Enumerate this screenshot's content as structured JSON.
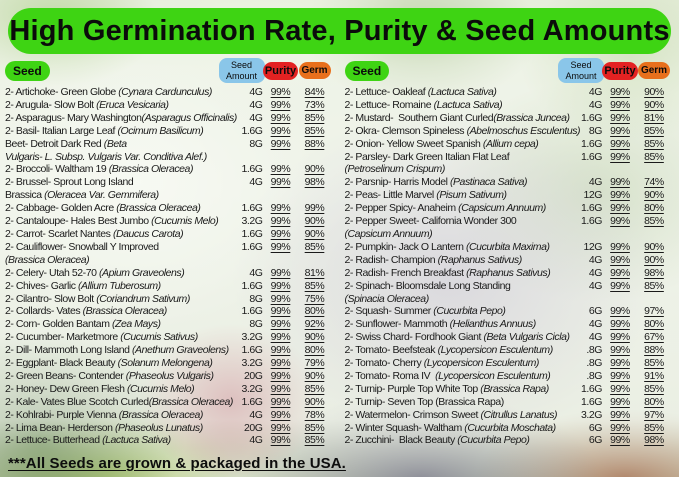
{
  "title": "High Germination Rate, Purity & Seed Amounts",
  "column_headers": {
    "seed": "Seed",
    "seed_amount": "Seed Amount",
    "purity": "Purity",
    "germ": "Germ"
  },
  "colors": {
    "header_green": "#3ed413",
    "seed_badge_green": "#3ed413",
    "seed_amount_blue": "#8ac6e9",
    "purity_red": "#e32222",
    "germ_orange": "#e8701c"
  },
  "footer": "***All Seeds are grown & packaged in the USA.",
  "columns": [
    {
      "rows": [
        {
          "name": "2- Artichoke- Green Globe ",
          "latin": "(Cynara Cardunculus)",
          "amount": "4G",
          "purity": "99%",
          "germ": "84%"
        },
        {
          "name": "2- Arugula- Slow Bolt ",
          "latin": "(Eruca Vesicaria)",
          "amount": "4G",
          "purity": "99%",
          "germ": "73%"
        },
        {
          "name": "2- Asparagus- Mary Washington",
          "latin": "(Asparagus Officinalis)",
          "amount": "4G",
          "purity": "99%",
          "germ": "85%"
        },
        {
          "name": "2- Basil- Italian Large Leaf ",
          "latin": "(Ocimum Basilicum)",
          "amount": "1.6G",
          "purity": "99%",
          "germ": "85%"
        },
        {
          "name": "Beet- Detroit Dark Red ",
          "latin": "(Beta\nVulgaris- L. Subsp. Vulgaris Var. Conditiva Alef.)",
          "amount": "8G",
          "purity": "99%",
          "germ": "88%"
        },
        {
          "name": "2- Broccoli- Waltham 19 ",
          "latin": "(Brassica Oleracea)",
          "amount": "1.6G",
          "purity": "99%",
          "germ": "90%"
        },
        {
          "name": "2- Brussel- Sprout Long Island\nBrassica ",
          "latin": "(Oleracea Var. Gemmifera)",
          "amount": "4G",
          "purity": "99%",
          "germ": "98%"
        },
        {
          "name": "2- Cabbage- Golden Acre ",
          "latin": "(Brassica Oleracea)",
          "amount": "1.6G",
          "purity": "99%",
          "germ": "99%"
        },
        {
          "name": "2- Cantaloupe- Hales Best Jumbo ",
          "latin": "(Cucumis Melo)",
          "amount": "3.2G",
          "purity": "99%",
          "germ": "90%"
        },
        {
          "name": "2- Carrot- Scarlet Nantes ",
          "latin": "(Daucus Carota)",
          "amount": "1.6G",
          "purity": "99%",
          "germ": "90%"
        },
        {
          "name": "2- Cauliflower- Snowball Y Improved\n",
          "latin": "(Brassica Oleracea)",
          "amount": "1.6G",
          "purity": "99%",
          "germ": "85%"
        },
        {
          "name": "2- Celery- Utah 52-70 ",
          "latin": "(Apium Graveolens)",
          "amount": "4G",
          "purity": "99%",
          "germ": "81%"
        },
        {
          "name": "2- Chives- Garlic ",
          "latin": "(Allium Tuberosum)",
          "amount": "1.6G",
          "purity": "99%",
          "germ": "85%"
        },
        {
          "name": "2- Cilantro- Slow Bolt ",
          "latin": "(Coriandrum Sativum)",
          "amount": "8G",
          "purity": "99%",
          "germ": "75%"
        },
        {
          "name": "2- Collards- Vates ",
          "latin": "(Brassica Oleracea)",
          "amount": "1.6G",
          "purity": "99%",
          "germ": "80%"
        },
        {
          "name": "2- Corn- Golden Bantam ",
          "latin": "(Zea Mays)",
          "amount": "8G",
          "purity": "99%",
          "germ": "92%"
        },
        {
          "name": "2- Cucumber- Marketmore ",
          "latin": "(Cucumis Sativus)",
          "amount": "3.2G",
          "purity": "99%",
          "germ": "90%"
        },
        {
          "name": "2- Dill- Mammoth Long Island ",
          "latin": "(Anethum Graveolens)",
          "amount": "1.6G",
          "purity": "99%",
          "germ": "80%"
        },
        {
          "name": "2- Eggplant- Black Beauty ",
          "latin": "(Solanum Melongena)",
          "amount": "3.2G",
          "purity": "99%",
          "germ": "79%"
        },
        {
          "name": "2- Green Beans- Contender ",
          "latin": "(Phaseolus Vulgaris)",
          "amount": "20G",
          "purity": "99%",
          "germ": "90%"
        },
        {
          "name": "2- Honey- Dew Green Flesh ",
          "latin": "(Cucumis Melo)",
          "amount": "3.2G",
          "purity": "99%",
          "germ": "85%"
        },
        {
          "name": "2- Kale- Vates Blue Scotch Curled",
          "latin": "(Brassica Oleracea)",
          "amount": "1.6G",
          "purity": "99%",
          "germ": "90%"
        },
        {
          "name": "2- Kohlrabi- Purple Vienna ",
          "latin": "(Brassica Oleracea)",
          "amount": "4G",
          "purity": "99%",
          "germ": "78%"
        },
        {
          "name": "2- Lima Bean- Herderson ",
          "latin": "(Phaseolus Lunatus)",
          "amount": "20G",
          "purity": "99%",
          "germ": "85%"
        },
        {
          "name": "2- Lettuce- Butterhead ",
          "latin": "(Lactuca Sativa)",
          "amount": "4G",
          "purity": "99%",
          "germ": "85%"
        }
      ]
    },
    {
      "rows": [
        {
          "name": "2- Lettuce- Oakleaf ",
          "latin": "(Lactuca Sativa)",
          "amount": "4G",
          "purity": "99%",
          "germ": "90%"
        },
        {
          "name": "2- Lettuce- Romaine ",
          "latin": "(Lactuca Sativa)",
          "amount": "4G",
          "purity": "99%",
          "germ": "90%"
        },
        {
          "name": "2- Mustard-  Southern Giant Curled",
          "latin": "(Brassica Juncea)",
          "amount": "1.6G",
          "purity": "99%",
          "germ": "81%"
        },
        {
          "name": "2- Okra- Clemson Spineless ",
          "latin": "(Abelmoschus Esculentus)",
          "amount": "8G",
          "purity": "99%",
          "germ": "85%"
        },
        {
          "name": "2- Onion- Yellow Sweet Spanish ",
          "latin": "(Allium cepa)",
          "amount": "1.6G",
          "purity": "99%",
          "germ": "85%"
        },
        {
          "name": "2- Parsley- Dark Green Italian Flat Leaf\n",
          "latin": "(Petroselinum Crispum)",
          "amount": "1.6G",
          "purity": "99%",
          "germ": "85%"
        },
        {
          "name": "2- Parsnip- Harris Model ",
          "latin": "(Pastinaca Sativa)",
          "amount": "4G",
          "purity": "99%",
          "germ": "74%"
        },
        {
          "name": "2- Peas- Little Marvel ",
          "latin": "(Pisum Sativum)",
          "amount": "12G",
          "purity": "99%",
          "germ": "90%"
        },
        {
          "name": "2- Pepper Spicy- Anaheim ",
          "latin": "(Capsicum Annuum)",
          "amount": "1.6G",
          "purity": "99%",
          "germ": "80%"
        },
        {
          "name": "2- Pepper Sweet- California Wonder 300\n",
          "latin": "(Capsicum Annuum)",
          "amount": "1.6G",
          "purity": "99%",
          "germ": "85%"
        },
        {
          "name": "2- Pumpkin- Jack O Lantern ",
          "latin": "(Cucurbita Maxima)",
          "amount": "12G",
          "purity": "99%",
          "germ": "90%"
        },
        {
          "name": "2- Radish- Champion ",
          "latin": "(Raphanus Sativus)",
          "amount": "4G",
          "purity": "99%",
          "germ": "90%"
        },
        {
          "name": "2- Radish- French Breakfast ",
          "latin": "(Raphanus Sativus)",
          "amount": "4G",
          "purity": "99%",
          "germ": "98%"
        },
        {
          "name": "2- Spinach- Bloomsdale Long Standing\n",
          "latin": "(Spinacia Oleracea)",
          "amount": "4G",
          "purity": "99%",
          "germ": "85%"
        },
        {
          "name": "2- Squash- Summer ",
          "latin": "(Cucurbita Pepo)",
          "amount": "6G",
          "purity": "99%",
          "germ": "97%"
        },
        {
          "name": "2- Sunflower- Mammoth ",
          "latin": "(Helianthus Annuus)",
          "amount": "4G",
          "purity": "99%",
          "germ": "80%"
        },
        {
          "name": "2- Swiss Chard- Fordhook Giant ",
          "latin": "(Beta Vulgaris Cicla)",
          "amount": "4G",
          "purity": "99%",
          "germ": "67%"
        },
        {
          "name": "2- Tomato- Beefsteak ",
          "latin": "(Lycopersicon Esculentum)",
          "amount": ".8G",
          "purity": "99%",
          "germ": "88%"
        },
        {
          "name": "2- Tomato- Cherry ",
          "latin": "(Lycopersicon Esculentum)",
          "amount": ".8G",
          "purity": "99%",
          "germ": "85%"
        },
        {
          "name": "2- Tomato- Roma IV  ",
          "latin": "(Lycopersicon Esculentum)",
          "amount": ".8G",
          "purity": "99%",
          "germ": "91%"
        },
        {
          "name": "2- Turnip- Purple Top White Top ",
          "latin": "(Brassica Rapa)",
          "amount": "1.6G",
          "purity": "99%",
          "germ": "85%"
        },
        {
          "name": "2- Turnip- Seven Top (Brassica Rapa)",
          "latin": "",
          "amount": "1.6G",
          "purity": "99%",
          "germ": "80%"
        },
        {
          "name": "2- Watermelon- Crimson Sweet ",
          "latin": "(Citrullus Lanatus)",
          "amount": "3.2G",
          "purity": "99%",
          "germ": "97%"
        },
        {
          "name": "2- Winter Squash- Waltham ",
          "latin": "(Cucurbita Moschata)",
          "amount": "6G",
          "purity": "99%",
          "germ": "85%"
        },
        {
          "name": "2- Zucchini-  Black Beauty ",
          "latin": "(Cucurbita Pepo)",
          "amount": "6G",
          "purity": "99%",
          "germ": "98%"
        }
      ]
    }
  ]
}
